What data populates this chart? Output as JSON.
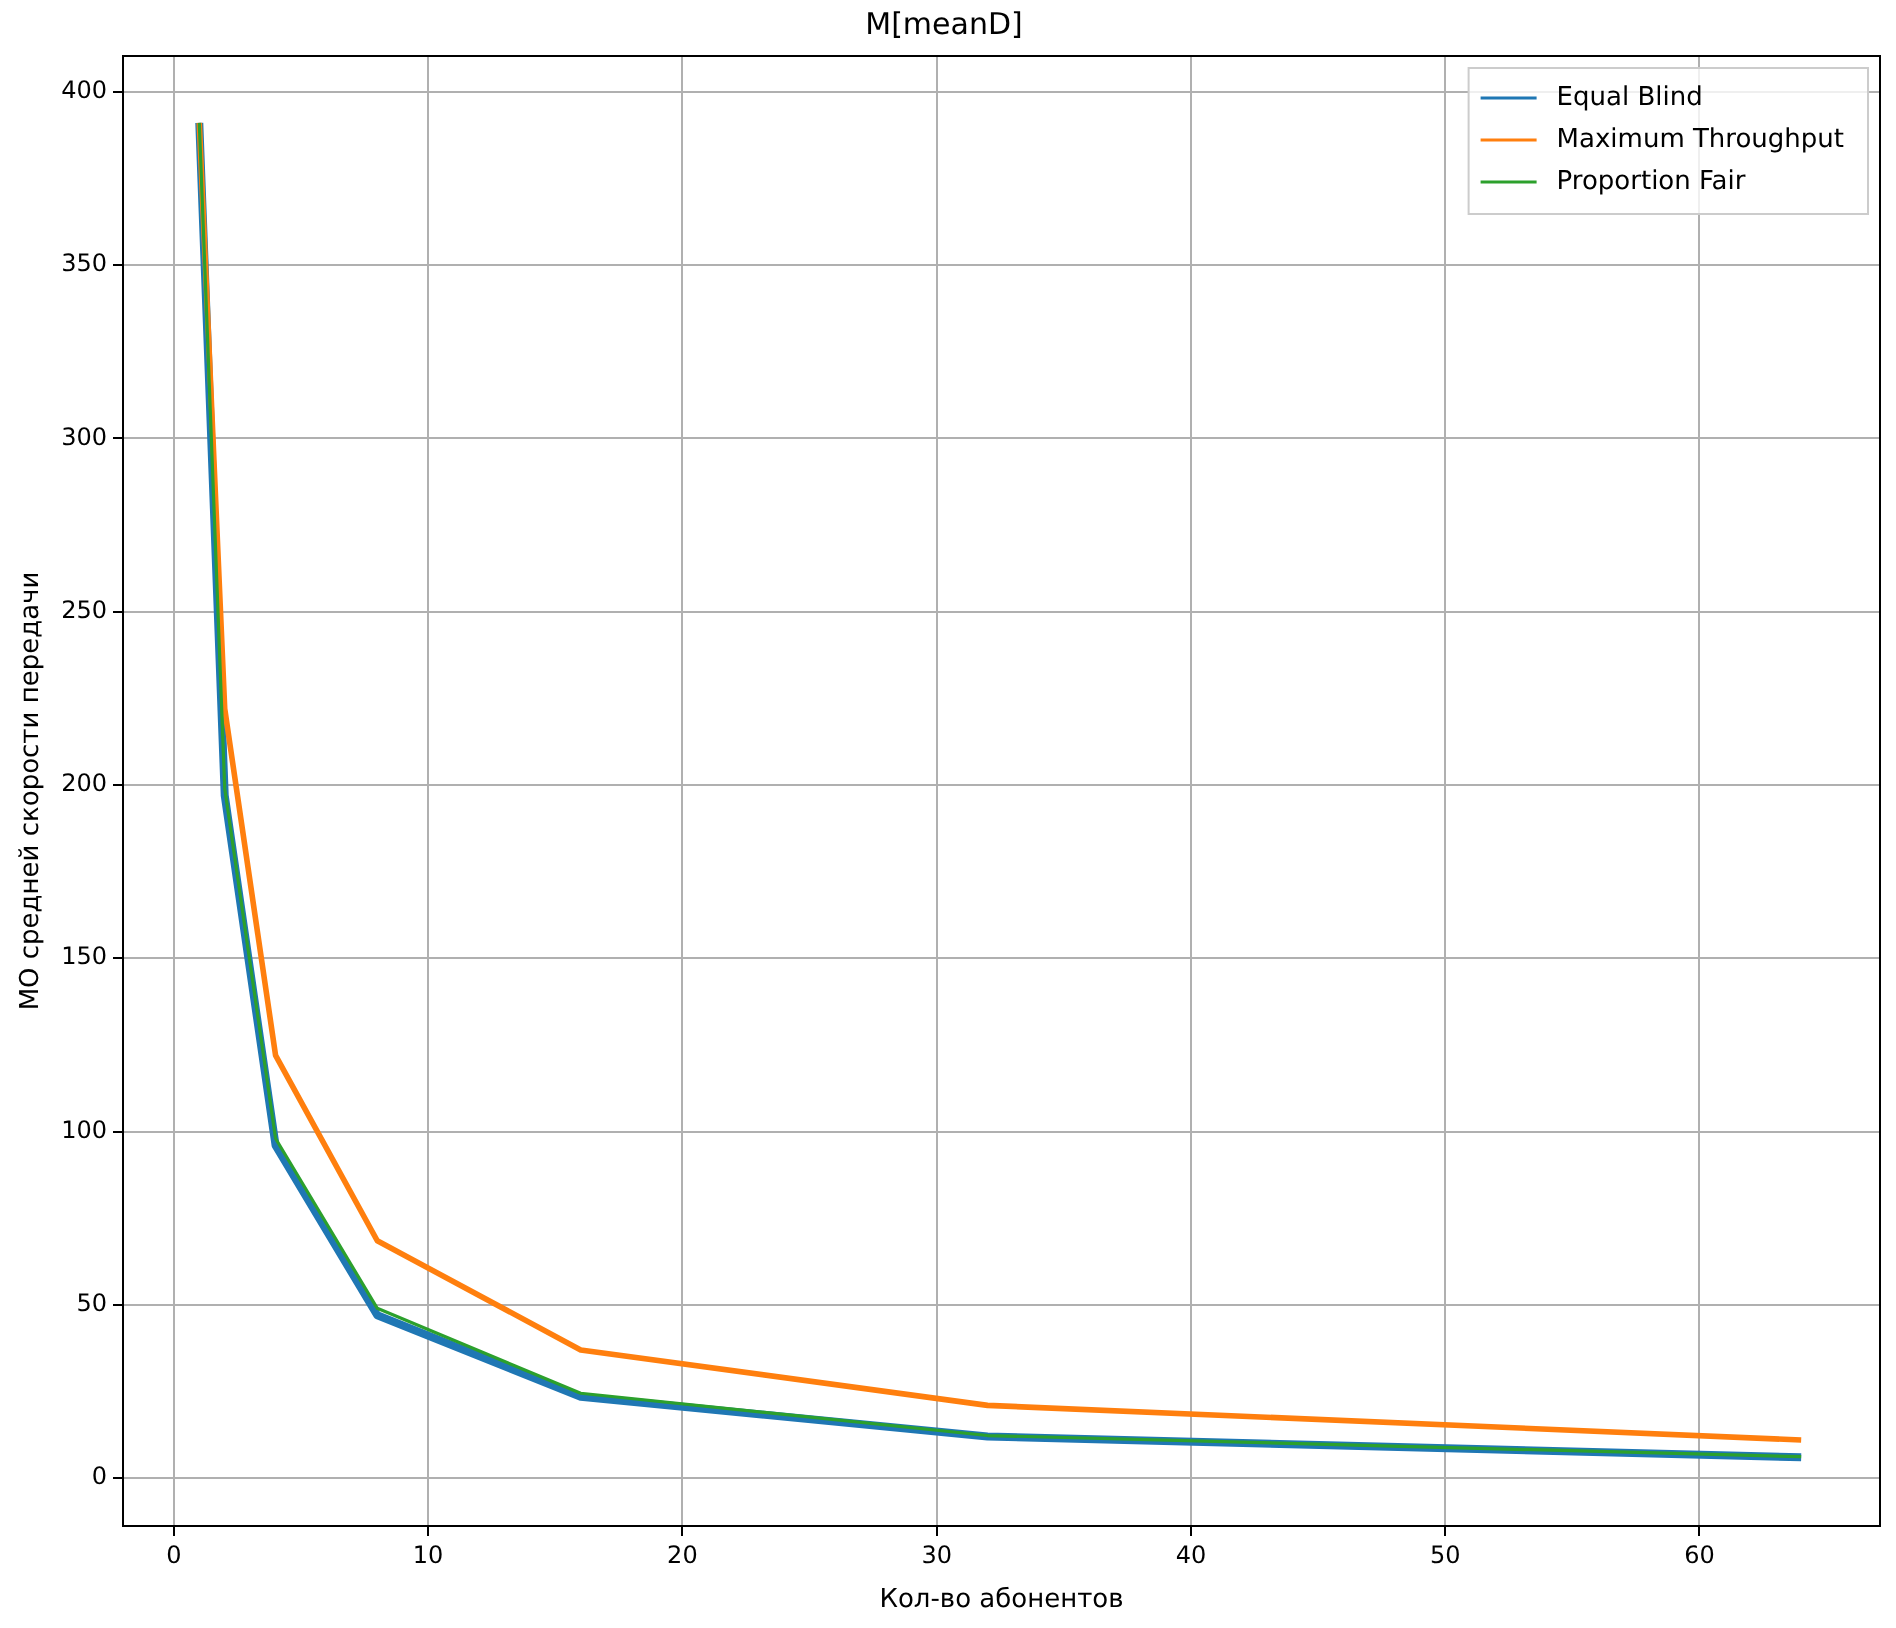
{
  "chart_data": {
    "type": "line",
    "title": "M[meanD]",
    "xlabel": "Кол-во абонентов",
    "ylabel": "МО средней скорости передачи",
    "x": [
      1,
      2,
      4,
      8,
      16,
      32,
      64
    ],
    "series": [
      {
        "name": "Equal Blind",
        "color": "#1f77b4",
        "values": [
          391,
          197,
          96,
          47,
          23.5,
          12,
          6
        ]
      },
      {
        "name": "Maximum Throughput",
        "color": "#ff7f0e",
        "values": [
          391,
          222,
          122,
          68.5,
          37,
          21,
          11
        ]
      },
      {
        "name": "Proportion Fair",
        "color": "#2ca02c",
        "values": [
          391,
          199,
          98,
          49,
          24.5,
          12.3,
          6.2
        ]
      }
    ],
    "xlim": [
      -2,
      67.1
    ],
    "ylim": [
      -13.8,
      410.3
    ],
    "xticks": [
      0,
      10,
      20,
      30,
      40,
      50,
      60
    ],
    "yticks": [
      0,
      50,
      100,
      150,
      200,
      250,
      300,
      350,
      400
    ],
    "grid": true,
    "legend": "top right",
    "marker": "none",
    "line_style": "solid"
  }
}
